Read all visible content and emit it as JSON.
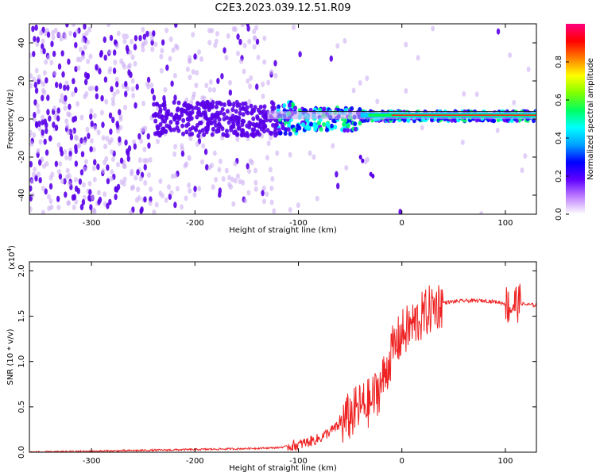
{
  "title": "C2E3.2023.039.12.51.R09",
  "colors": {
    "signal": "#ee2222",
    "spectrum_dark": "#5a00e8",
    "spectrum_light": "#c9a8f2",
    "axes": "#000000"
  },
  "chart_data": [
    {
      "type": "heatmap",
      "title": "",
      "xlabel": "Height of straight line (km)",
      "ylabel": "Frequency (Hz)",
      "xlim": [
        -360,
        130
      ],
      "ylim": [
        -50,
        50
      ],
      "x_ticks": [
        -300,
        -200,
        -100,
        0,
        100
      ],
      "y_ticks": [
        -40,
        -20,
        0,
        20,
        40
      ],
      "grid": false,
      "ridge": {
        "frequency_hz": 2,
        "x_start": -130,
        "x_end": 130
      },
      "colorbar": {
        "label": "Normalized spectral amplitude",
        "range": [
          0,
          1
        ],
        "ticks": [
          0.0,
          0.2,
          0.4,
          0.6,
          0.8
        ],
        "colors": [
          "#ffffff",
          "#c080ff",
          "#6000ff",
          "#0000ff",
          "#00a0ff",
          "#00ffff",
          "#00ff60",
          "#80ff00",
          "#ffff00",
          "#ff8000",
          "#ff0000",
          "#ff0080"
        ]
      }
    },
    {
      "type": "line",
      "title": "",
      "xlabel": "Height of straight line (km)",
      "ylabel": "SNR (10 * v/v)",
      "y_multiplier": "(x10",
      "y_multiplier_exp": "4",
      "y_multiplier_close": ")",
      "xlim": [
        -360,
        130
      ],
      "ylim": [
        0,
        2.1
      ],
      "x_ticks": [
        -300,
        -200,
        -100,
        0,
        100
      ],
      "y_ticks": [
        "0.0",
        "0.5",
        "1.0",
        "1.5",
        "2.0"
      ],
      "grid": false,
      "series": [
        {
          "color": "#ee2222",
          "x": [
            -360,
            -300,
            -250,
            -200,
            -150,
            -120,
            -100,
            -80,
            -60,
            -50,
            -40,
            -30,
            -20,
            -15,
            -10,
            -5,
            0,
            10,
            20,
            30,
            40,
            60,
            80,
            90,
            100,
            105,
            110,
            115,
            120,
            130
          ],
          "y": [
            0.0,
            0.01,
            0.02,
            0.03,
            0.04,
            0.05,
            0.08,
            0.15,
            0.3,
            0.4,
            0.5,
            0.55,
            0.75,
            0.9,
            1.1,
            1.2,
            1.3,
            1.4,
            1.5,
            1.6,
            1.65,
            1.67,
            1.67,
            1.66,
            1.64,
            1.6,
            1.65,
            1.64,
            1.63,
            1.62
          ]
        }
      ]
    }
  ]
}
